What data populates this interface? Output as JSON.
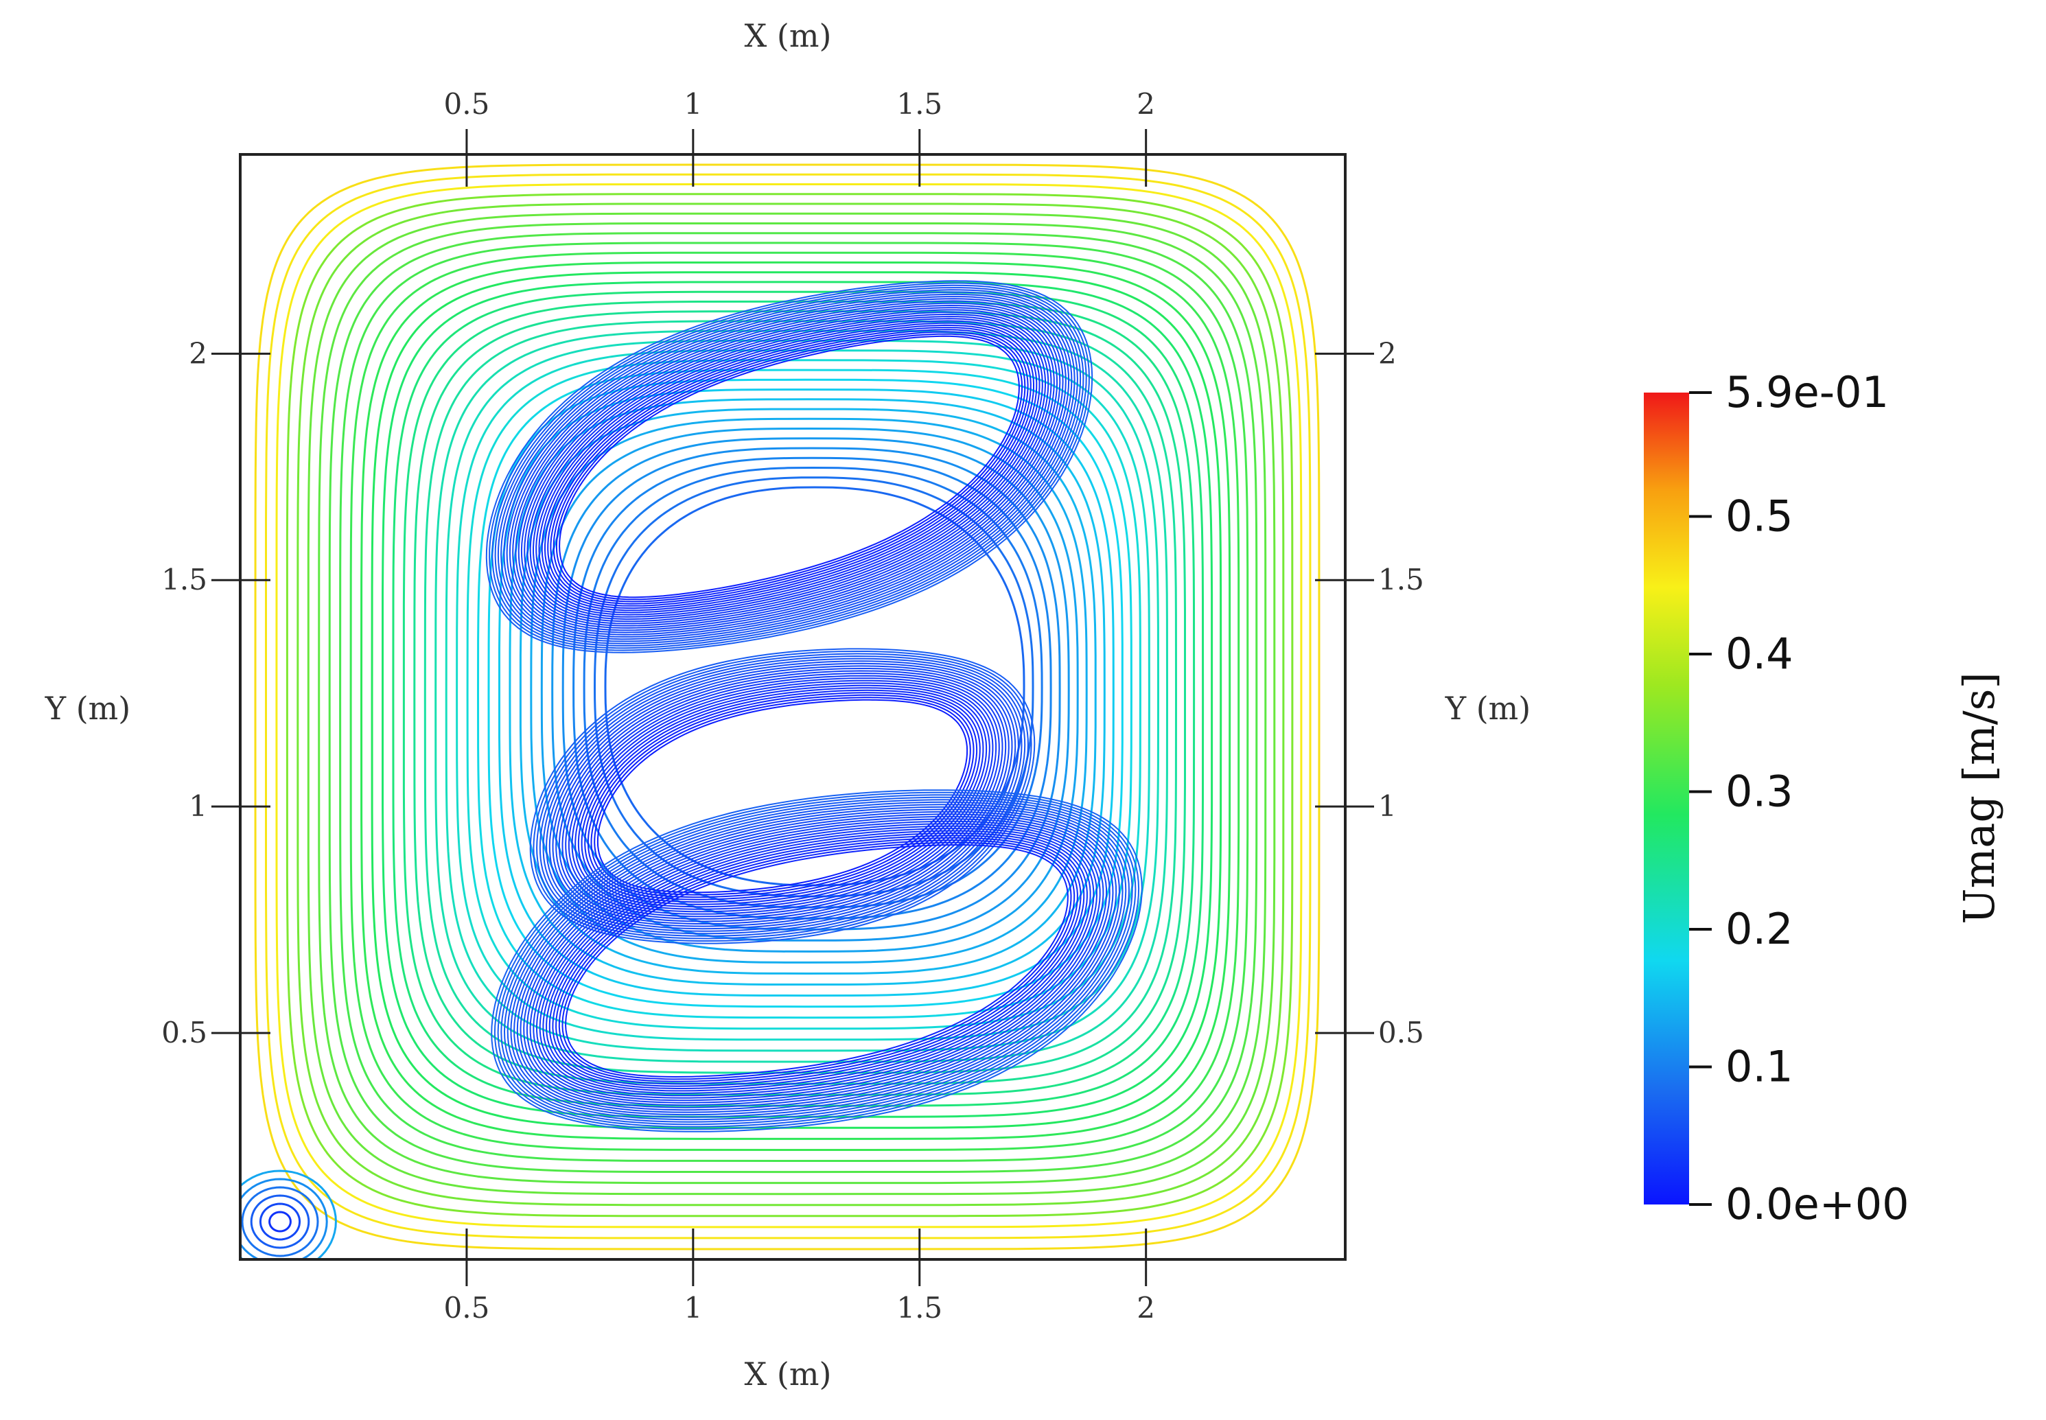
{
  "plot": {
    "x_axis_title": "X (m)",
    "y_axis_title": "Y (m)",
    "x_ticks": [
      {
        "value": 0.5,
        "label": "0.5"
      },
      {
        "value": 1,
        "label": "1"
      },
      {
        "value": 1.5,
        "label": "1.5"
      },
      {
        "value": 2,
        "label": "2"
      }
    ],
    "y_ticks": [
      {
        "value": 0.5,
        "label": "0.5"
      },
      {
        "value": 1,
        "label": "1"
      },
      {
        "value": 1.5,
        "label": "1.5"
      },
      {
        "value": 2,
        "label": "2"
      }
    ],
    "domain": {
      "x": [
        0,
        2.44
      ],
      "y": [
        0,
        2.44
      ]
    },
    "streamline_description": "streamlines of a lid-driven style recirculating flow, coloured by velocity magnitude"
  },
  "colorbar": {
    "title": "Umag [m/s]",
    "min": 0.0,
    "max": 0.59,
    "ticks": [
      {
        "value": 0.59,
        "label": "5.9e-01"
      },
      {
        "value": 0.5,
        "label": "0.5"
      },
      {
        "value": 0.4,
        "label": "0.4"
      },
      {
        "value": 0.3,
        "label": "0.3"
      },
      {
        "value": 0.2,
        "label": "0.2"
      },
      {
        "value": 0.1,
        "label": "0.1"
      },
      {
        "value": 0.0,
        "label": "0.0e+00"
      }
    ],
    "colormap": [
      "#0a14ff",
      "#1a6cf0",
      "#10d8f0",
      "#22e860",
      "#9ee820",
      "#f8f018",
      "#f8a010",
      "#f01818"
    ]
  }
}
